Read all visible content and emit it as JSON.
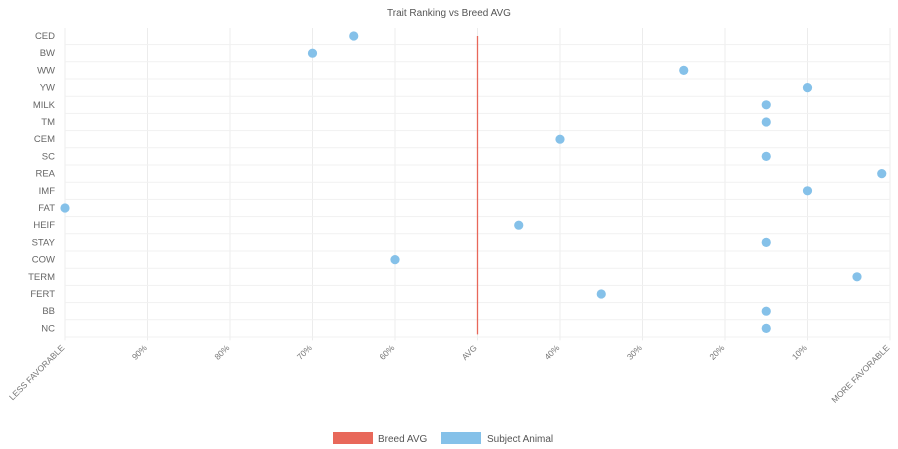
{
  "chart_data": {
    "type": "scatter",
    "title": "Trait Ranking vs Breed AVG",
    "categories": [
      "CED",
      "BW",
      "WW",
      "YW",
      "MILK",
      "TM",
      "CEM",
      "SC",
      "REA",
      "IMF",
      "FAT",
      "HEIF",
      "STAY",
      "COW",
      "TERM",
      "FERT",
      "BB",
      "NC"
    ],
    "x_ticks": [
      "LESS FAVORABLE",
      "90%",
      "80%",
      "70%",
      "60%",
      "AVG",
      "40%",
      "30%",
      "20%",
      "10%",
      "MORE FAVORABLE"
    ],
    "x_range": [
      0,
      100
    ],
    "series": [
      {
        "name": "Subject Animal",
        "color": "#85c1e9",
        "values": [
          65,
          70,
          25,
          10,
          15,
          15,
          40,
          15,
          1,
          10,
          100,
          45,
          15,
          60,
          4,
          35,
          15,
          15
        ]
      }
    ],
    "reference_line": {
      "name": "Breed AVG",
      "value": 50,
      "color": "#e8685a"
    },
    "legend": {
      "position": "bottom-center"
    },
    "grid": true
  }
}
